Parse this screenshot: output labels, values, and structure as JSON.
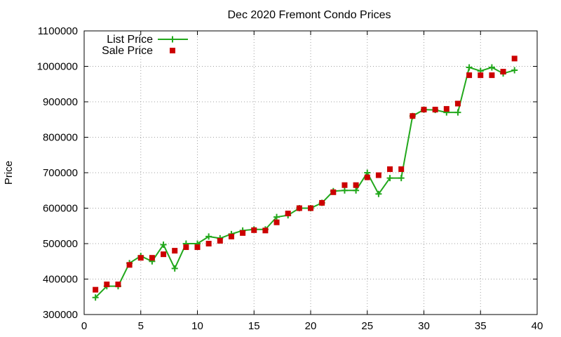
{
  "chart_data": {
    "type": "line",
    "title": "Dec 2020 Fremont Condo Prices",
    "xlabel": "",
    "ylabel": "Price",
    "xlim": [
      0,
      40
    ],
    "ylim": [
      300000,
      1100000
    ],
    "xticks": [
      0,
      5,
      10,
      15,
      20,
      25,
      30,
      35,
      40
    ],
    "yticks": [
      300000,
      400000,
      500000,
      600000,
      700000,
      800000,
      900000,
      1000000,
      1100000
    ],
    "grid": true,
    "legend_position": "top-left",
    "series": [
      {
        "name": "List Price",
        "style": "lines+points",
        "marker": "plus",
        "color": "#22a81c",
        "x": [
          1,
          2,
          3,
          4,
          5,
          6,
          7,
          8,
          9,
          10,
          11,
          12,
          13,
          14,
          15,
          16,
          17,
          18,
          19,
          20,
          21,
          22,
          23,
          24,
          25,
          26,
          27,
          28,
          29,
          30,
          31,
          32,
          33,
          34,
          35,
          36,
          37,
          38
        ],
        "y": [
          348000,
          380000,
          380000,
          445000,
          465000,
          450000,
          497000,
          430000,
          500000,
          500000,
          520000,
          515000,
          527000,
          537000,
          540000,
          540000,
          575000,
          580000,
          600000,
          600000,
          615000,
          648000,
          650000,
          650000,
          700000,
          640000,
          685000,
          685000,
          860000,
          878000,
          877000,
          870000,
          870000,
          997000,
          987000,
          997000,
          980000,
          989000
        ]
      },
      {
        "name": "Sale Price",
        "style": "points",
        "marker": "square",
        "color": "#cc0000",
        "x": [
          1,
          2,
          3,
          4,
          5,
          6,
          7,
          8,
          9,
          10,
          11,
          12,
          13,
          14,
          15,
          16,
          17,
          18,
          19,
          20,
          21,
          22,
          23,
          24,
          25,
          26,
          27,
          28,
          29,
          30,
          31,
          32,
          33,
          34,
          35,
          36,
          37,
          38
        ],
        "y": [
          370000,
          385000,
          385000,
          440000,
          460000,
          460000,
          470000,
          480000,
          490000,
          490000,
          500000,
          508000,
          520000,
          530000,
          538000,
          537000,
          560000,
          585000,
          600000,
          600000,
          615000,
          645000,
          665000,
          665000,
          687000,
          693000,
          710000,
          710000,
          860000,
          878000,
          878000,
          880000,
          895000,
          975000,
          975000,
          975000,
          985000,
          1022000
        ]
      }
    ]
  }
}
